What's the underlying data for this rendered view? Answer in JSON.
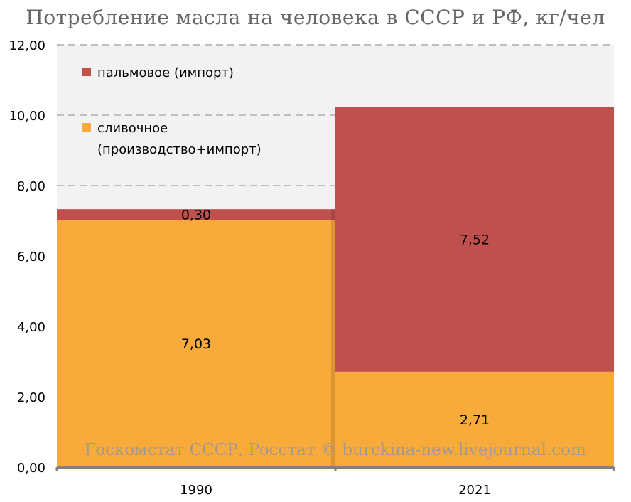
{
  "title": "Потребление масла на человека в СССР и РФ, кг/чел",
  "source": "Госкомстат СССР, Росстат © burckina-new.livejournal.com",
  "colors": {
    "butter": "#F8AB3B",
    "palm": "#C0504D",
    "plot_background": "#F2F2F2",
    "grid": "#BFBFBF",
    "axis": "#808080"
  },
  "chart_data": {
    "type": "bar",
    "stacked": true,
    "categories": [
      "1990",
      "2021"
    ],
    "series": [
      {
        "name": "сливочное (производство+импорт)",
        "values": [
          7.03,
          2.71
        ],
        "labels": [
          "7,03",
          "2,71"
        ],
        "color": "#F8AB3B"
      },
      {
        "name": "пальмовое (импорт)",
        "values": [
          0.3,
          7.52
        ],
        "labels": [
          "0,30",
          "7,52"
        ],
        "color": "#C0504D"
      }
    ],
    "ylim": [
      0,
      12
    ],
    "yticks": [
      "0,00",
      "2,00",
      "4,00",
      "6,00",
      "8,00",
      "10,00",
      "12,00"
    ],
    "grid": "dashed horizontal",
    "legend": [
      {
        "lines": [
          "пальмовое (импорт)"
        ],
        "color": "#C0504D"
      },
      {
        "lines": [
          "сливочное",
          "(производство+импорт)"
        ],
        "color": "#F8AB3B"
      }
    ],
    "legend_placement": "top-left",
    "xlabel": "",
    "ylabel": ""
  }
}
